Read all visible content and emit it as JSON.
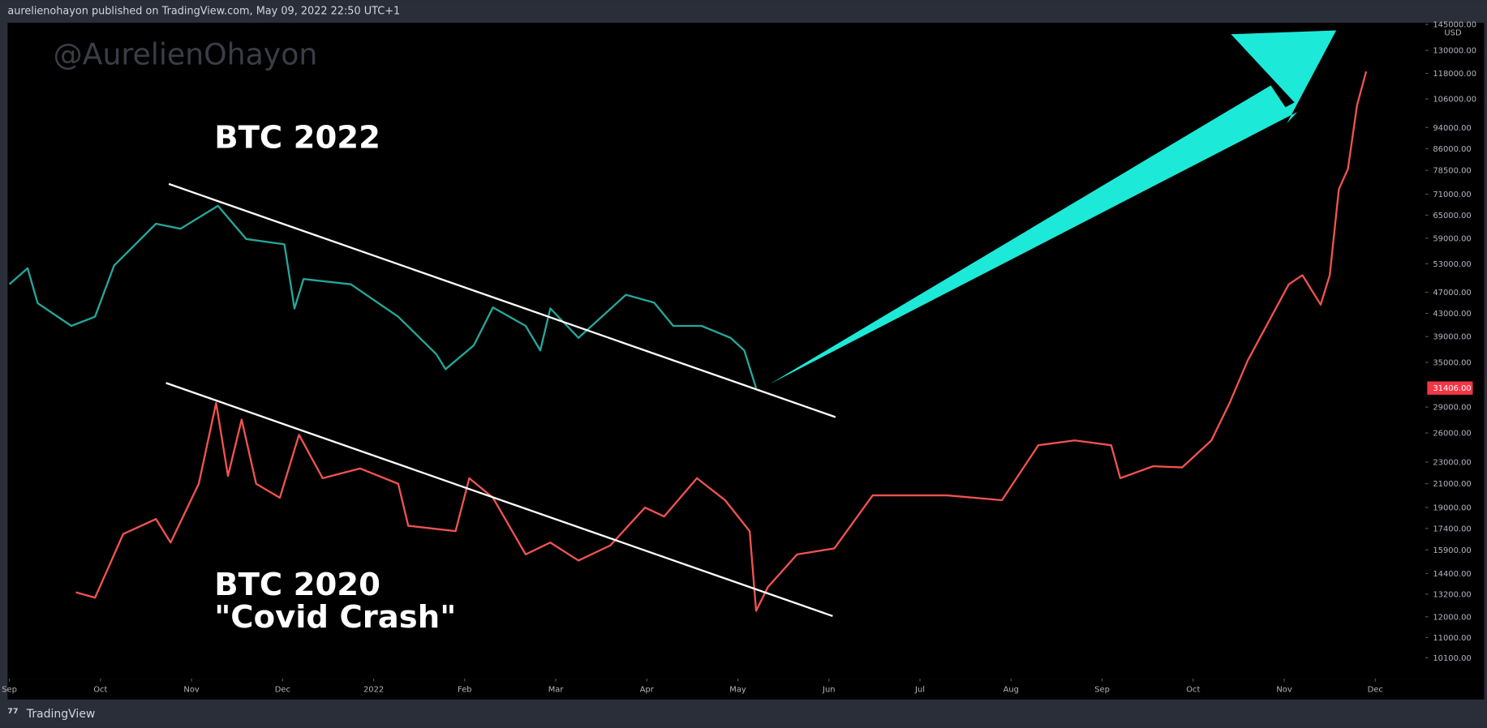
{
  "header": "aurelienohayon published on TradingView.com, May 09, 2022 22:50 UTC+1",
  "watermark": "@AurelienOhayon",
  "footer": "TradingView",
  "chart_data": {
    "type": "line",
    "log_y": true,
    "y_unit": "USD",
    "annotation": "\"Covid Crash\"",
    "xlim": [
      -0.02,
      15.55
    ],
    "ylim": [
      9250,
      146000
    ],
    "xticks": [
      {
        "value": 0,
        "label": "Sep"
      },
      {
        "value": 1,
        "label": "Oct"
      },
      {
        "value": 2,
        "label": "Nov"
      },
      {
        "value": 3,
        "label": "Dec"
      },
      {
        "value": 4,
        "label": "2022"
      },
      {
        "value": 5,
        "label": "Feb"
      },
      {
        "value": 6,
        "label": "Mar"
      },
      {
        "value": 7,
        "label": "Apr"
      },
      {
        "value": 8,
        "label": "May"
      },
      {
        "value": 9,
        "label": "Jun"
      },
      {
        "value": 10,
        "label": "Jul"
      },
      {
        "value": 11,
        "label": "Aug"
      },
      {
        "value": 12,
        "label": "Sep"
      },
      {
        "value": 13,
        "label": "Oct"
      },
      {
        "value": 14,
        "label": "Nov"
      },
      {
        "value": 15,
        "label": "Dec"
      }
    ],
    "yticks": [
      {
        "value": 145000,
        "label": "145000.00"
      },
      {
        "value": 130000,
        "label": "130000.00"
      },
      {
        "value": 118000,
        "label": "118000.00"
      },
      {
        "value": 106000,
        "label": "106000.00"
      },
      {
        "value": 94000,
        "label": "94000.00"
      },
      {
        "value": 86000,
        "label": "86000.00"
      },
      {
        "value": 78500,
        "label": "78500.00"
      },
      {
        "value": 71000,
        "label": "71000.00"
      },
      {
        "value": 65000,
        "label": "65000.00"
      },
      {
        "value": 59000,
        "label": "59000.00"
      },
      {
        "value": 53000,
        "label": "53000.00"
      },
      {
        "value": 47000,
        "label": "47000.00"
      },
      {
        "value": 43000,
        "label": "43000.00"
      },
      {
        "value": 39000,
        "label": "39000.00"
      },
      {
        "value": 35000,
        "label": "35000.00"
      },
      {
        "value": 29000,
        "label": "29000.00"
      },
      {
        "value": 26000,
        "label": "26000.00"
      },
      {
        "value": 23000,
        "label": "23000.00"
      },
      {
        "value": 21000,
        "label": "21000.00"
      },
      {
        "value": 19000,
        "label": "19000.00"
      },
      {
        "value": 17400,
        "label": "17400.00"
      },
      {
        "value": 15900,
        "label": "15900.00"
      },
      {
        "value": 14400,
        "label": "14400.00"
      },
      {
        "value": 13200,
        "label": "13200.00"
      },
      {
        "value": 12000,
        "label": "12000.00"
      },
      {
        "value": 11000,
        "label": "11000.00"
      },
      {
        "value": 10100,
        "label": "10100.00"
      }
    ],
    "last_price": {
      "value": 31406,
      "label": "31406.00"
    },
    "series": [
      {
        "name": "BTC 2022",
        "color": "#26a69a",
        "x": [
          0,
          0.2,
          0.31,
          0.68,
          0.94,
          1.15,
          1.61,
          1.88,
          2.29,
          2.6,
          3.02,
          3.13,
          3.23,
          3.75,
          4.27,
          4.69,
          4.79,
          5.1,
          5.31,
          5.67,
          5.83,
          5.94,
          6.25,
          6.77,
          7.08,
          7.29,
          7.6,
          7.92,
          8.07,
          8.2
        ],
        "values": [
          48600,
          52000,
          44900,
          40800,
          42400,
          52600,
          62700,
          61400,
          67600,
          58800,
          57500,
          43900,
          49700,
          48600,
          42400,
          36200,
          34000,
          37600,
          44100,
          40800,
          36800,
          43900,
          38800,
          46500,
          45000,
          40800,
          40800,
          38800,
          36800,
          31406
        ]
      },
      {
        "name": "BTC 2020",
        "color": "#ef5350",
        "x": [
          0.73,
          0.94,
          1.25,
          1.61,
          1.77,
          2.08,
          2.27,
          2.4,
          2.55,
          2.71,
          2.97,
          3.18,
          3.44,
          3.85,
          4.27,
          4.38,
          4.9,
          5.05,
          5.31,
          5.67,
          5.94,
          6.25,
          6.6,
          6.98,
          7.19,
          7.55,
          7.86,
          8.13,
          8.2,
          8.33,
          8.65,
          9.06,
          9.48,
          9.9,
          10.3,
          10.9,
          11.3,
          11.7,
          12.1,
          12.2,
          12.56,
          12.88,
          13.2,
          13.4,
          13.6,
          13.9,
          14.05,
          14.2,
          14.4,
          14.5,
          14.6,
          14.7,
          14.8,
          14.9
        ],
        "values": [
          13300,
          13000,
          17000,
          18100,
          16400,
          21000,
          29500,
          21700,
          27500,
          21000,
          19800,
          25800,
          21500,
          22400,
          21000,
          17600,
          17200,
          21500,
          19800,
          15600,
          16400,
          15200,
          16200,
          19000,
          18300,
          21500,
          19600,
          17200,
          12300,
          13600,
          15600,
          16000,
          20000,
          20000,
          20000,
          19600,
          24700,
          25200,
          24700,
          21500,
          22600,
          22500,
          25200,
          29500,
          35300,
          43700,
          48600,
          50500,
          44600,
          50500,
          72500,
          79000,
          103300,
          119000
        ]
      }
    ]
  }
}
